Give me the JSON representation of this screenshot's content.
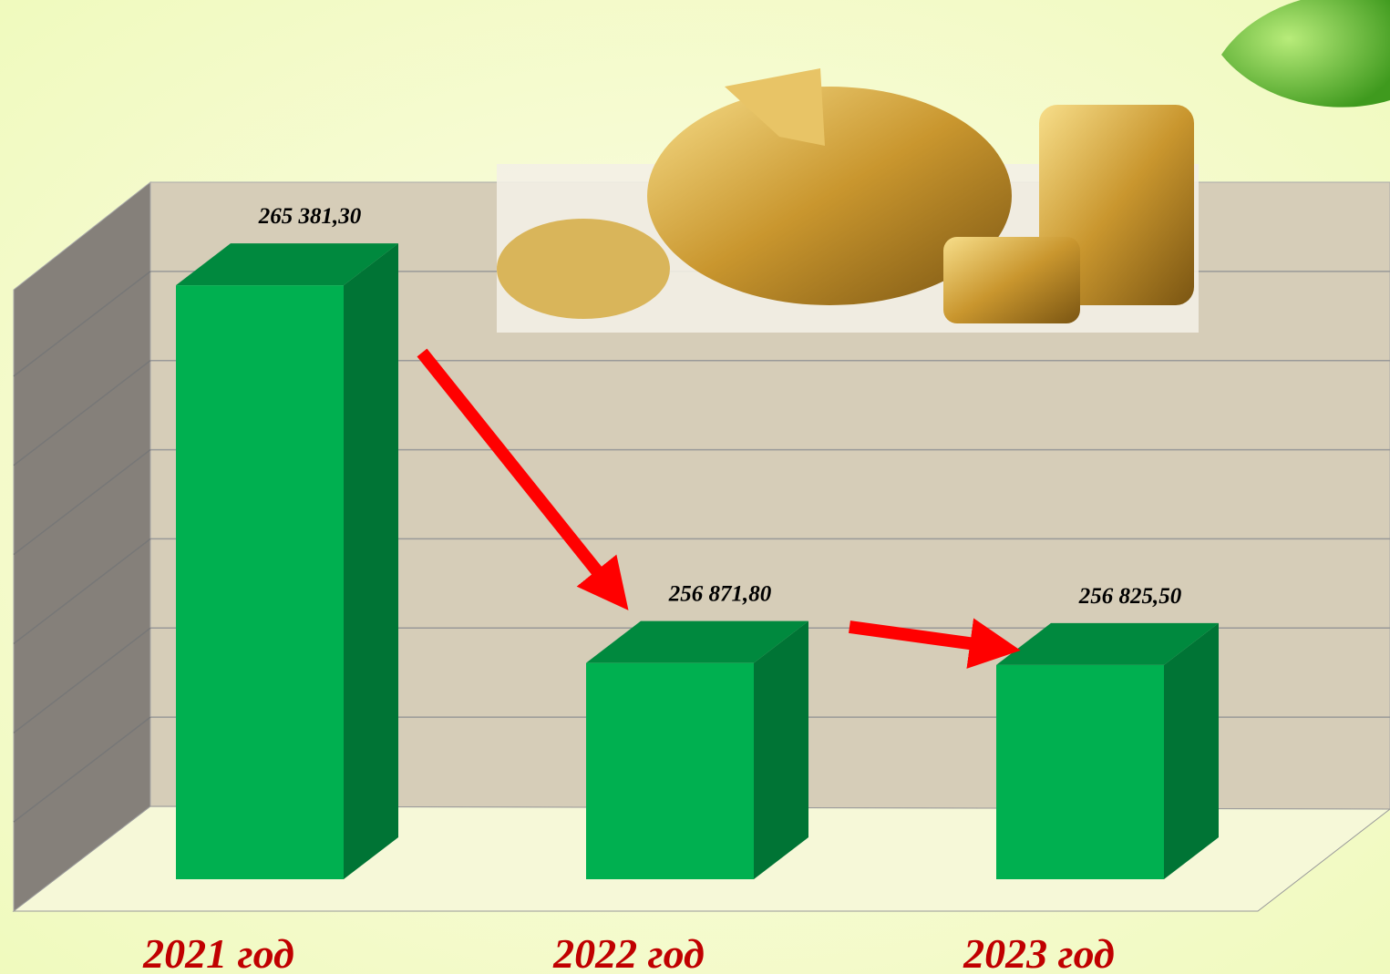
{
  "chart_data": {
    "type": "bar3d",
    "categories": [
      "2021 год",
      "2022 год",
      "2023 год"
    ],
    "values": [
      265381.3,
      256871.8,
      256825.5
    ],
    "value_labels": [
      "265 381,30",
      "256 871,80",
      "256 825,50"
    ],
    "color": "#00b050",
    "ylim": [
      252000,
      266000
    ],
    "grid": true
  }
}
